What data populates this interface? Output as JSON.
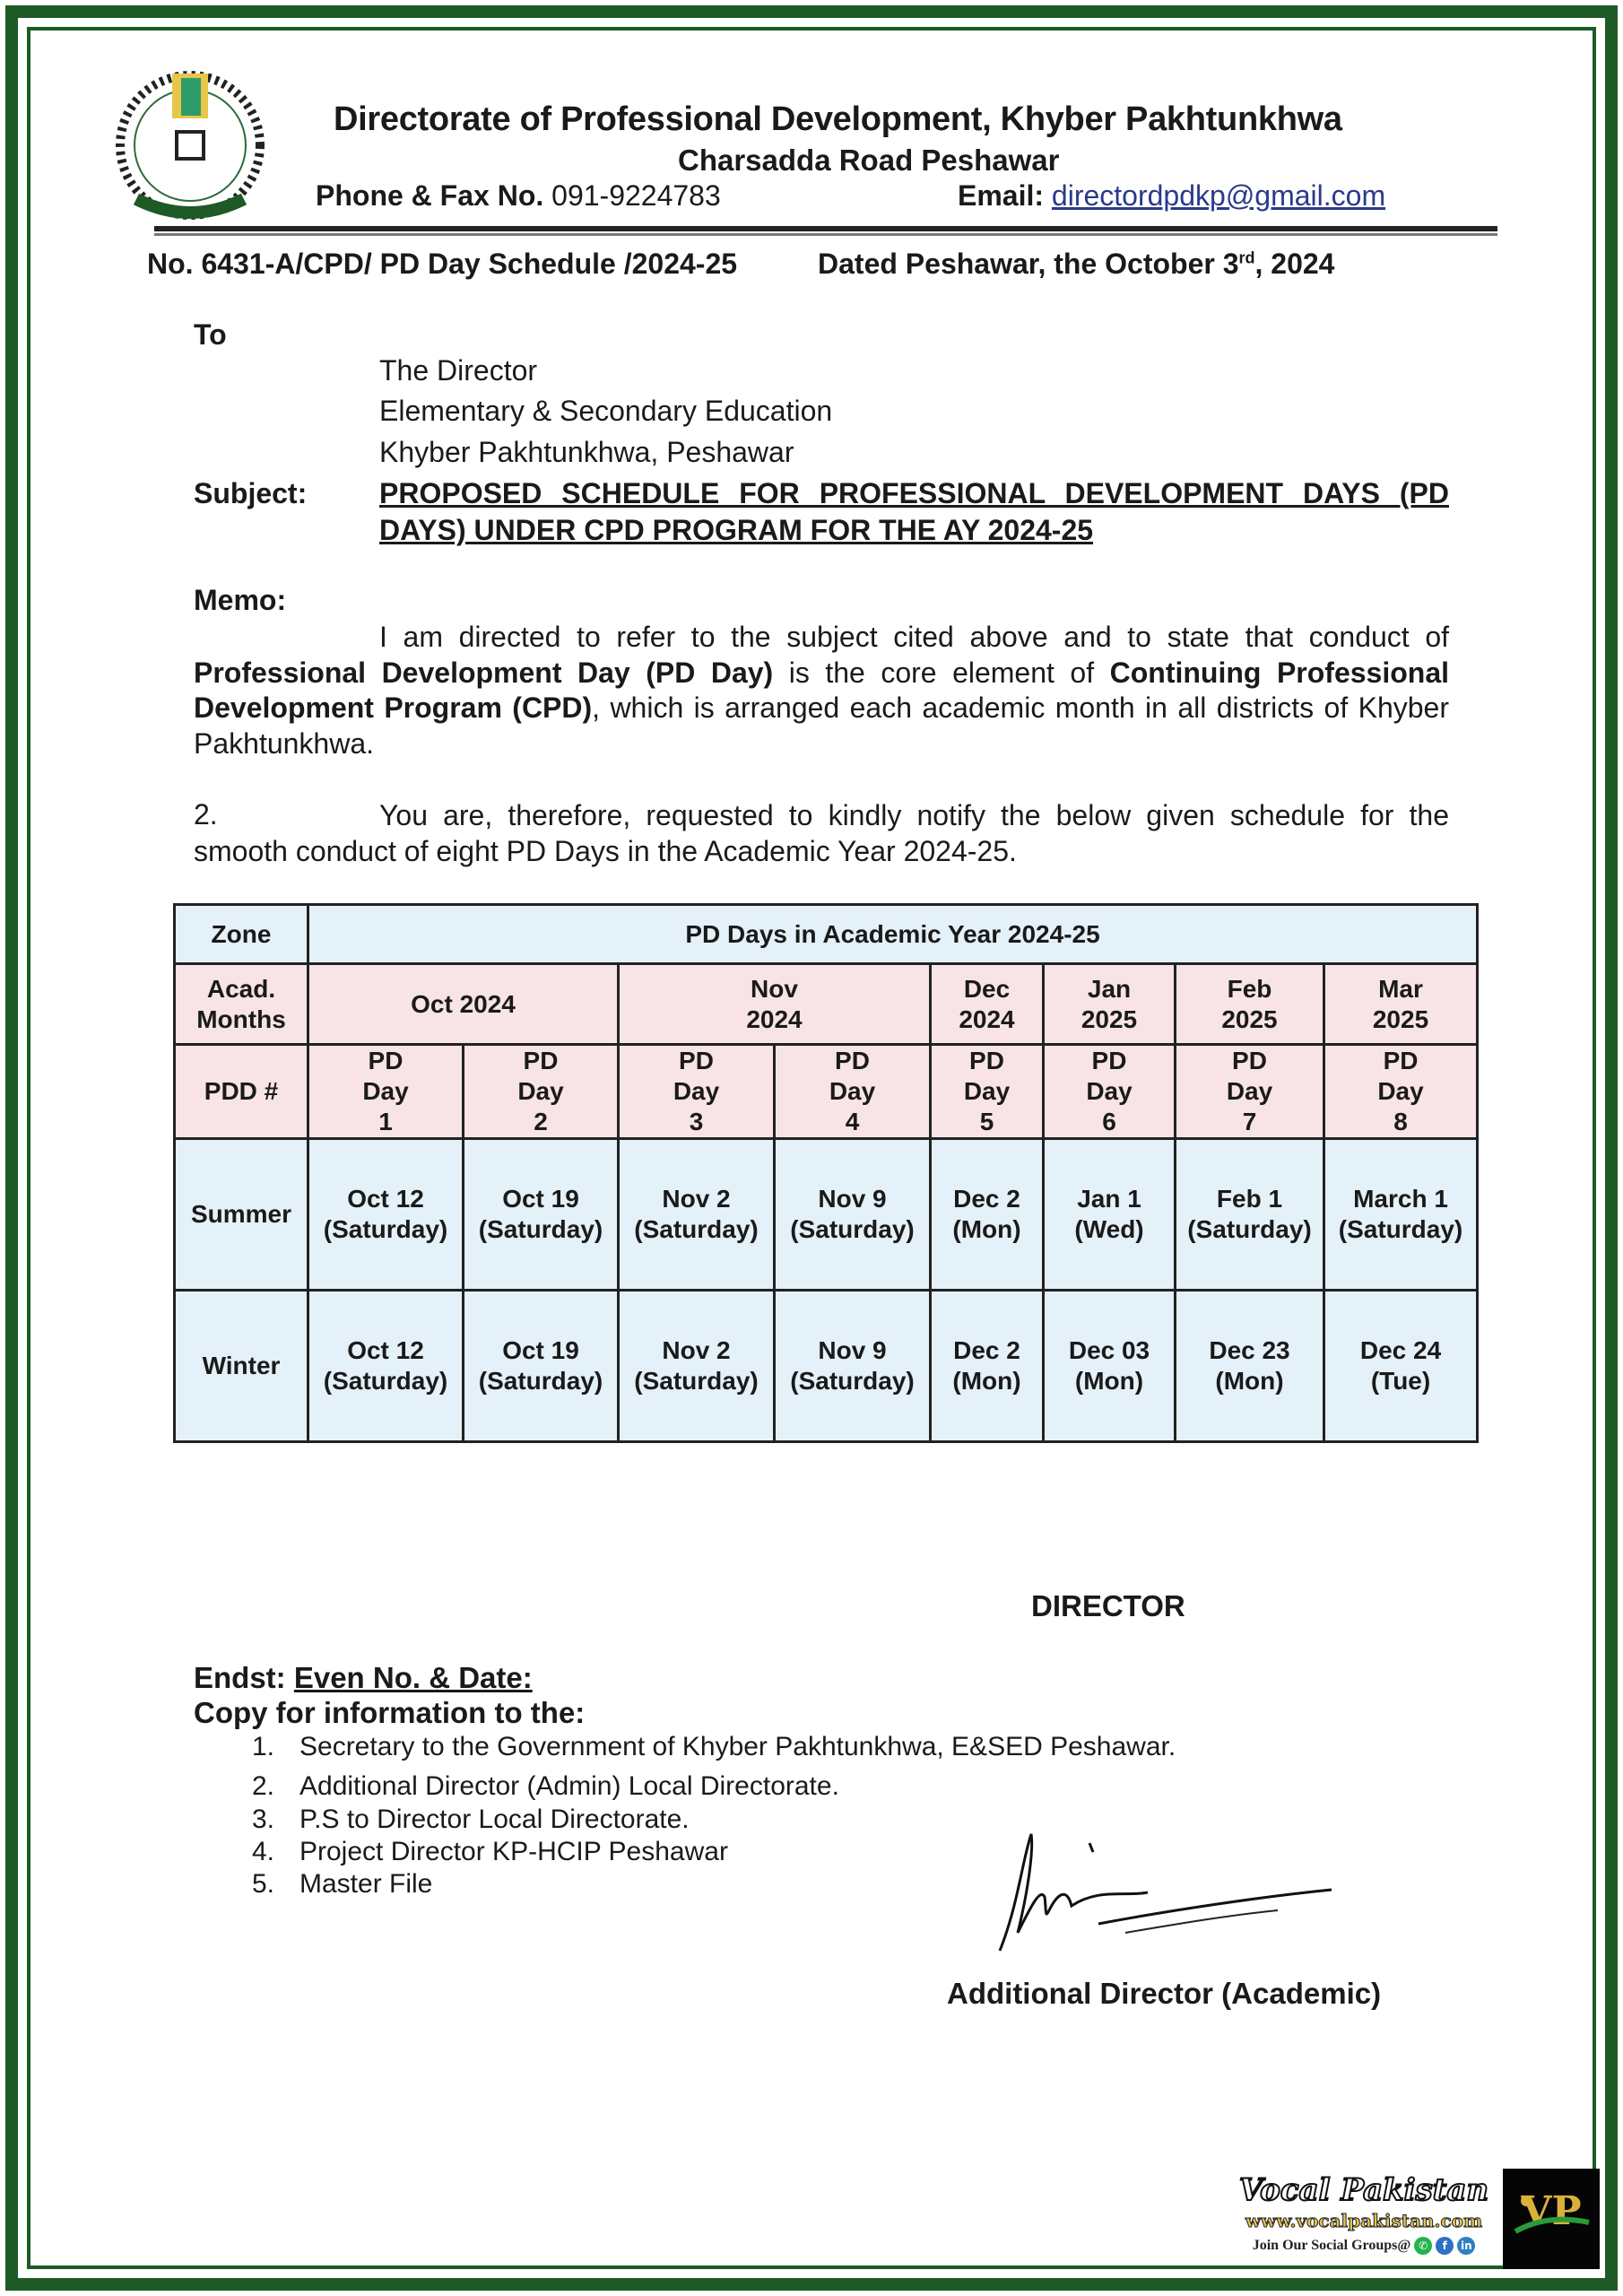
{
  "letterhead": {
    "organization": "Directorate of Professional Development, Khyber Pakhtunkhwa",
    "address": "Charsadda Road Peshawar",
    "phone_label": "Phone & Fax No.",
    "phone": "091-9224783",
    "email_label": "Email:",
    "email": "directordpdkp@gmail.com",
    "logo_icon": "directorate-seal-logo"
  },
  "reference": {
    "number": "No. 6431-A/CPD/ PD Day Schedule /2024-25",
    "dated_prefix": "Dated Peshawar, the October 3",
    "dated_sup": "rd",
    "dated_suffix": ", 2024"
  },
  "recipient": {
    "to_label": "To",
    "lines": [
      "The Director",
      "Elementary & Secondary Education",
      "Khyber Pakhtunkhwa, Peshawar"
    ]
  },
  "subject": {
    "label": "Subject:",
    "text": "PROPOSED SCHEDULE FOR PROFESSIONAL DEVELOPMENT DAYS (PD DAYS) UNDER CPD PROGRAM FOR THE AY 2024-25"
  },
  "memo": {
    "label": "Memo:",
    "p1_a": "I am directed to refer to the subject cited above and to state that conduct of ",
    "p1_b": "Professional Development Day (PD Day)",
    "p1_c": " is the core element of ",
    "p1_d": "Continuing Professional Development Program (CPD)",
    "p1_e": ", which is arranged each academic month in all districts of Khyber Pakhtunkhwa.",
    "p2_num": "2.",
    "p2_text": "You are, therefore, requested to kindly notify the below given schedule for the smooth conduct of eight PD Days in the Academic Year 2024-25."
  },
  "table": {
    "zone_label": "Zone",
    "title": "PD Days in Academic Year 2024-25",
    "months_label": "Acad. Months",
    "months": [
      "Oct 2024",
      "Nov 2024",
      "Dec 2024",
      "Jan 2025",
      "Feb 2025",
      "Mar 2025"
    ],
    "pdd_label": "PDD #",
    "pd_days": [
      "PD Day 1",
      "PD Day 2",
      "PD Day 3",
      "PD Day 4",
      "PD Day 5",
      "PD Day 6",
      "PD Day 7",
      "PD Day 8"
    ],
    "rows": [
      {
        "zone": "Summer",
        "dates": [
          {
            "date": "Oct 12",
            "day": "(Saturday)"
          },
          {
            "date": "Oct 19",
            "day": "(Saturday)"
          },
          {
            "date": "Nov 2",
            "day": "(Saturday)"
          },
          {
            "date": "Nov 9",
            "day": "(Saturday)"
          },
          {
            "date": "Dec 2",
            "day": "(Mon)"
          },
          {
            "date": "Jan 1",
            "day": "(Wed)"
          },
          {
            "date": "Feb 1",
            "day": "(Saturday)"
          },
          {
            "date": "March 1",
            "day": "(Saturday)"
          }
        ]
      },
      {
        "zone": "Winter",
        "dates": [
          {
            "date": "Oct 12",
            "day": "(Saturday)"
          },
          {
            "date": "Oct 19",
            "day": "(Saturday)"
          },
          {
            "date": "Nov 2",
            "day": "(Saturday)"
          },
          {
            "date": "Nov 9",
            "day": "(Saturday)"
          },
          {
            "date": "Dec 2",
            "day": "(Mon)"
          },
          {
            "date": "Dec 03",
            "day": "(Mon)"
          },
          {
            "date": "Dec 23",
            "day": "(Mon)"
          },
          {
            "date": "Dec 24",
            "day": "(Tue)"
          }
        ]
      }
    ],
    "colors": {
      "header_blue": "#e4f1f8",
      "header_pink": "#f8e4e7"
    }
  },
  "signoff": {
    "director": "DIRECTOR",
    "endst_label": "Endst:",
    "endst_value": "Even No. & Date:",
    "copy_label": "Copy for information to the:",
    "copies": [
      {
        "num": "1.",
        "text": "Secretary to the Government of Khyber Pakhtunkhwa, E&SED Peshawar."
      },
      {
        "num": "2.",
        "text": "Additional Director (Admin) Local Directorate."
      },
      {
        "num": "3.",
        "text": "P.S to Director Local Directorate."
      },
      {
        "num": "4.",
        "text": "Project Director KP-HCIP Peshawar"
      },
      {
        "num": "5.",
        "text": "Master File"
      }
    ],
    "signatory": "Additional Director (Academic)"
  },
  "watermark": {
    "brand": "Vocal Pakistan",
    "url": "www.vocalpakistan.com",
    "join": "Join Our Social Groups@",
    "logo_text": "VOCAL PAKISTAN",
    "logo_initials": "VP",
    "social_icons": [
      "whatsapp-icon",
      "facebook-icon",
      "linkedin-icon"
    ]
  },
  "frame_color": "#1d5a25"
}
